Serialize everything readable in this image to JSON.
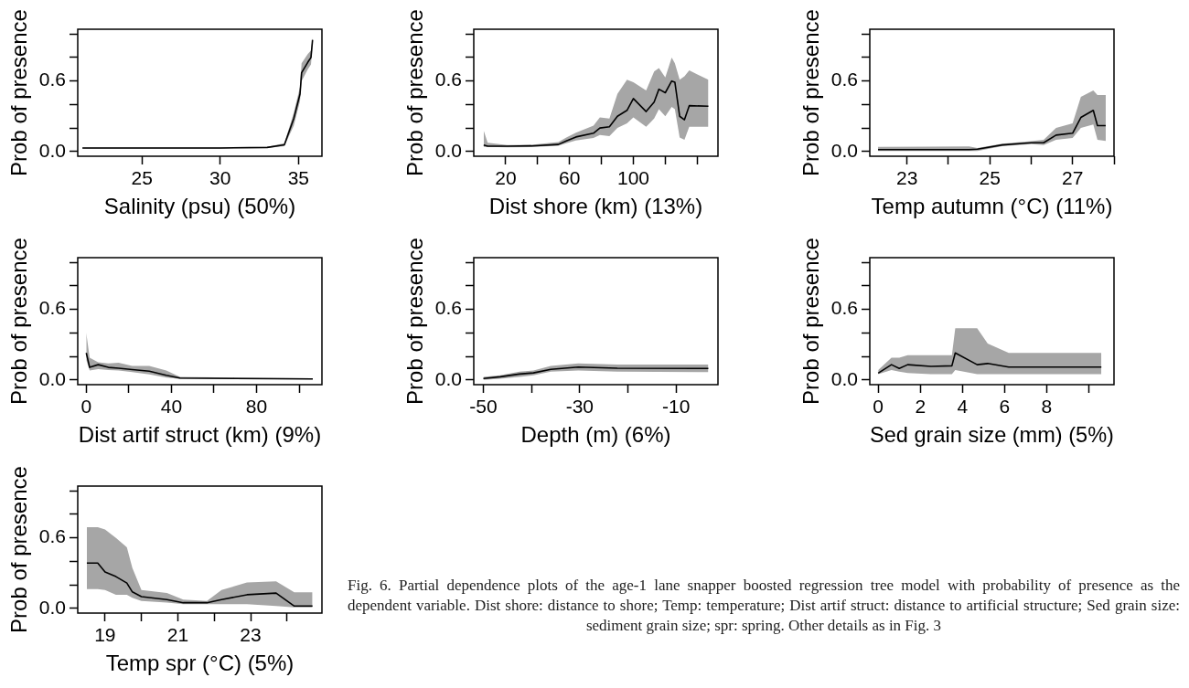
{
  "chart_data": [
    {
      "type": "line",
      "xlabel": "Salinity (psu) (50%)",
      "ylabel": "Prob of presence",
      "xlim": [
        20.9,
        36.5
      ],
      "xticks": [
        25,
        30,
        35
      ],
      "ylim": [
        -0.04,
        1.04
      ],
      "yticks": [
        {
          "value": 0,
          "label": "0.0"
        },
        {
          "value": 0.2,
          "label": null
        },
        {
          "value": 0.4,
          "label": null
        },
        {
          "value": 0.6,
          "label": "0.6"
        },
        {
          "value": 0.8,
          "label": null
        },
        {
          "value": 1,
          "label": null
        }
      ],
      "series": [
        {
          "color": "#000000",
          "x": [
            21.2,
            26,
            30,
            33,
            34.1,
            34.7,
            35.1,
            35.2,
            35.6,
            35.8,
            35.9
          ],
          "values": [
            0.03,
            0.03,
            0.03,
            0.035,
            0.057,
            0.28,
            0.49,
            0.67,
            0.76,
            0.8,
            0.95
          ],
          "lower": [
            0.025,
            0.025,
            0.025,
            0.03,
            0.045,
            0.22,
            0.43,
            0.6,
            0.7,
            0.74,
            0.9
          ],
          "upper": [
            0.035,
            0.035,
            0.035,
            0.04,
            0.07,
            0.33,
            0.55,
            0.75,
            0.83,
            0.86,
            0.97
          ]
        }
      ]
    },
    {
      "type": "line",
      "xlabel": "Dist shore (km) (13%)",
      "ylabel": "Prob of presence",
      "xlim": [
        0,
        153
      ],
      "xticks": [
        20,
        {
          "value": 40,
          "label": null
        },
        60,
        {
          "value": 80,
          "label": null
        },
        100,
        {
          "value": 120,
          "label": null
        },
        {
          "value": 140,
          "label": null
        }
      ],
      "ylim": [
        -0.04,
        1.04
      ],
      "yticks": [
        {
          "value": 0,
          "label": "0.0"
        },
        {
          "value": 0.2,
          "label": null
        },
        {
          "value": 0.4,
          "label": null
        },
        {
          "value": 0.6,
          "label": "0.6"
        },
        {
          "value": 0.8,
          "label": null
        },
        {
          "value": 1,
          "label": null
        }
      ],
      "series": [
        {
          "color": "#000000",
          "x": [
            6.2,
            8.7,
            21,
            36,
            53,
            58,
            64,
            75,
            79,
            85,
            90,
            96,
            100,
            108,
            113,
            116,
            120,
            124,
            126,
            129,
            132,
            135,
            147
          ],
          "values": [
            0.056,
            0.046,
            0.046,
            0.048,
            0.06,
            0.09,
            0.124,
            0.156,
            0.2,
            0.21,
            0.3,
            0.35,
            0.45,
            0.34,
            0.42,
            0.53,
            0.5,
            0.6,
            0.59,
            0.3,
            0.27,
            0.39,
            0.385
          ],
          "lower": [
            0.04,
            0.04,
            0.036,
            0.038,
            0.05,
            0.07,
            0.094,
            0.116,
            0.14,
            0.13,
            0.2,
            0.24,
            0.29,
            0.21,
            0.28,
            0.36,
            0.3,
            0.38,
            0.36,
            0.12,
            0.1,
            0.21,
            0.21
          ],
          "upper": [
            0.18,
            0.075,
            0.056,
            0.058,
            0.08,
            0.12,
            0.16,
            0.22,
            0.29,
            0.28,
            0.49,
            0.61,
            0.59,
            0.52,
            0.68,
            0.71,
            0.63,
            0.8,
            0.75,
            0.61,
            0.64,
            0.69,
            0.61
          ]
        }
      ]
    },
    {
      "type": "line",
      "xlabel": "Temp autumn (°C) (11%)",
      "ylabel": "Prob of presence",
      "xlim": [
        22.1,
        28.0
      ],
      "xticks": [
        23,
        {
          "value": 24,
          "label": null
        },
        25,
        {
          "value": 26,
          "label": null
        },
        27,
        {
          "value": 28,
          "label": null
        }
      ],
      "ylim": [
        -0.04,
        1.04
      ],
      "yticks": [
        {
          "value": 0,
          "label": "0.0"
        },
        {
          "value": 0.2,
          "label": null
        },
        {
          "value": 0.4,
          "label": null
        },
        {
          "value": 0.6,
          "label": "0.6"
        },
        {
          "value": 0.8,
          "label": null
        },
        {
          "value": 1,
          "label": null
        }
      ],
      "series": [
        {
          "color": "#000000",
          "x": [
            22.3,
            24.5,
            24.7,
            25.3,
            26.0,
            26.3,
            26.6,
            27.0,
            27.2,
            27.5,
            27.6,
            27.8
          ],
          "values": [
            0.016,
            0.016,
            0.02,
            0.056,
            0.075,
            0.075,
            0.14,
            0.156,
            0.29,
            0.35,
            0.22,
            0.22
          ],
          "lower": [
            0.005,
            0.005,
            0.005,
            0.046,
            0.062,
            0.056,
            0.1,
            0.116,
            0.2,
            0.23,
            0.1,
            0.09
          ],
          "upper": [
            0.04,
            0.043,
            0.03,
            0.067,
            0.089,
            0.1,
            0.2,
            0.24,
            0.465,
            0.52,
            0.48,
            0.48
          ]
        }
      ]
    },
    {
      "type": "line",
      "xlabel": "Dist artif struct (km) (9%)",
      "ylabel": "Prob of presence",
      "xlim": [
        -4,
        110.7
      ],
      "xticks": [
        0,
        {
          "value": 20,
          "label": null
        },
        40,
        {
          "value": 60,
          "label": null
        },
        80,
        {
          "value": 100,
          "label": null
        }
      ],
      "ylim": [
        -0.04,
        1.04
      ],
      "yticks": [
        {
          "value": 0,
          "label": "0.0"
        },
        {
          "value": 0.2,
          "label": null
        },
        {
          "value": 0.4,
          "label": null
        },
        {
          "value": 0.6,
          "label": "0.6"
        },
        {
          "value": 0.8,
          "label": null
        },
        {
          "value": 1,
          "label": null
        }
      ],
      "series": [
        {
          "color": "#000000",
          "x": [
            0,
            1.6,
            5.6,
            10.4,
            15.2,
            21.6,
            29.6,
            37.6,
            44,
            69.6,
            106.4
          ],
          "values": [
            0.23,
            0.107,
            0.13,
            0.107,
            0.1,
            0.088,
            0.075,
            0.04,
            0.016,
            0.013,
            0.008
          ],
          "lower": [
            0.17,
            0.08,
            0.093,
            0.085,
            0.08,
            0.067,
            0.048,
            0.02,
            0.008,
            0.008,
            0.004
          ],
          "upper": [
            0.4,
            0.19,
            0.15,
            0.14,
            0.147,
            0.12,
            0.12,
            0.08,
            0.027,
            0.02,
            0.014
          ]
        }
      ]
    },
    {
      "type": "line",
      "xlabel": "Depth (m) (6%)",
      "ylabel": "Prob of presence",
      "xlim": [
        -52,
        -1.3
      ],
      "xticks": [
        -50,
        {
          "value": -40,
          "label": null
        },
        -30,
        {
          "value": -20,
          "label": null
        },
        -10
      ],
      "ylim": [
        -0.04,
        1.04
      ],
      "yticks": [
        {
          "value": 0,
          "label": "0.0"
        },
        {
          "value": 0.2,
          "label": null
        },
        {
          "value": 0.4,
          "label": null
        },
        {
          "value": 0.6,
          "label": "0.6"
        },
        {
          "value": 0.8,
          "label": null
        },
        {
          "value": 1,
          "label": null
        }
      ],
      "series": [
        {
          "color": "#000000",
          "x": [
            -50,
            -46.5,
            -42.5,
            -39.6,
            -36,
            -30.3,
            -22.2,
            -3.3
          ],
          "values": [
            0.013,
            0.027,
            0.05,
            0.06,
            0.09,
            0.11,
            0.1,
            0.098
          ],
          "lower": [
            0,
            0.01,
            0.027,
            0.04,
            0.07,
            0.08,
            0.07,
            0.067
          ],
          "upper": [
            0.027,
            0.04,
            0.07,
            0.08,
            0.12,
            0.14,
            0.13,
            0.13
          ]
        }
      ]
    },
    {
      "type": "line",
      "xlabel": "Sed grain size (mm) (5%)",
      "ylabel": "Prob of presence",
      "xlim": [
        -0.4,
        11.2
      ],
      "xticks": [
        0,
        2,
        4,
        6,
        8,
        {
          "value": 10,
          "label": null
        }
      ],
      "ylim": [
        -0.04,
        1.04
      ],
      "yticks": [
        {
          "value": 0,
          "label": "0.0"
        },
        {
          "value": 0.2,
          "label": null
        },
        {
          "value": 0.4,
          "label": null
        },
        {
          "value": 0.6,
          "label": "0.6"
        },
        {
          "value": 0.8,
          "label": null
        },
        {
          "value": 1,
          "label": null
        }
      ],
      "series": [
        {
          "color": "#000000",
          "x": [
            0,
            0.63,
            1.0,
            1.4,
            2.5,
            3.5,
            3.66,
            4.7,
            5.2,
            6.2,
            10.6
          ],
          "values": [
            0.058,
            0.13,
            0.098,
            0.13,
            0.115,
            0.12,
            0.23,
            0.13,
            0.14,
            0.11,
            0.11
          ],
          "lower": [
            0.049,
            0.084,
            0.07,
            0.06,
            0.049,
            0.049,
            0.084,
            0.049,
            0.049,
            0.049,
            0.049
          ],
          "upper": [
            0.084,
            0.19,
            0.19,
            0.21,
            0.21,
            0.21,
            0.44,
            0.44,
            0.31,
            0.23,
            0.23
          ]
        }
      ]
    },
    {
      "type": "line",
      "xlabel": "Temp spr (°C) (5%)",
      "ylabel": "Prob of presence",
      "xlim": [
        18.25,
        24.96
      ],
      "xticks": [
        19,
        {
          "value": 20,
          "label": null
        },
        21,
        {
          "value": 22,
          "label": null
        },
        23,
        {
          "value": 24,
          "label": null
        }
      ],
      "ylim": [
        -0.04,
        1.04
      ],
      "yticks": [
        {
          "value": 0,
          "label": "0.0"
        },
        {
          "value": 0.2,
          "label": null
        },
        {
          "value": 0.4,
          "label": null
        },
        {
          "value": 0.6,
          "label": "0.6"
        },
        {
          "value": 0.8,
          "label": null
        },
        {
          "value": 1,
          "label": null
        }
      ],
      "series": [
        {
          "color": "#000000",
          "x": [
            18.5,
            18.8,
            19.0,
            19.3,
            19.6,
            19.75,
            20.0,
            20.7,
            21.15,
            21.8,
            22.2,
            22.9,
            23.7,
            24.2,
            24.7
          ],
          "values": [
            0.385,
            0.385,
            0.31,
            0.27,
            0.215,
            0.14,
            0.1,
            0.075,
            0.048,
            0.048,
            0.075,
            0.116,
            0.13,
            0.02,
            0.02
          ],
          "lower": [
            0.164,
            0.164,
            0.156,
            0.116,
            0.116,
            0.09,
            0.062,
            0.05,
            0.035,
            0.035,
            0.035,
            0.035,
            0.02,
            0.008,
            0.008
          ],
          "upper": [
            0.69,
            0.69,
            0.67,
            0.6,
            0.52,
            0.345,
            0.156,
            0.13,
            0.075,
            0.062,
            0.156,
            0.22,
            0.23,
            0.137,
            0.137
          ]
        }
      ],
      "annotations": [
        "Fig. 6. Partial dependence plots of the age-1 lane snapper boosted regression tree model with probability of presence as the dependent variable. Dist shore: distance to shore; Temp: temperature; Dist artif struct: distance to artificial structure; Sed grain size: sediment grain size; spr: spring. Other details as in Fig. 3"
      ]
    }
  ]
}
